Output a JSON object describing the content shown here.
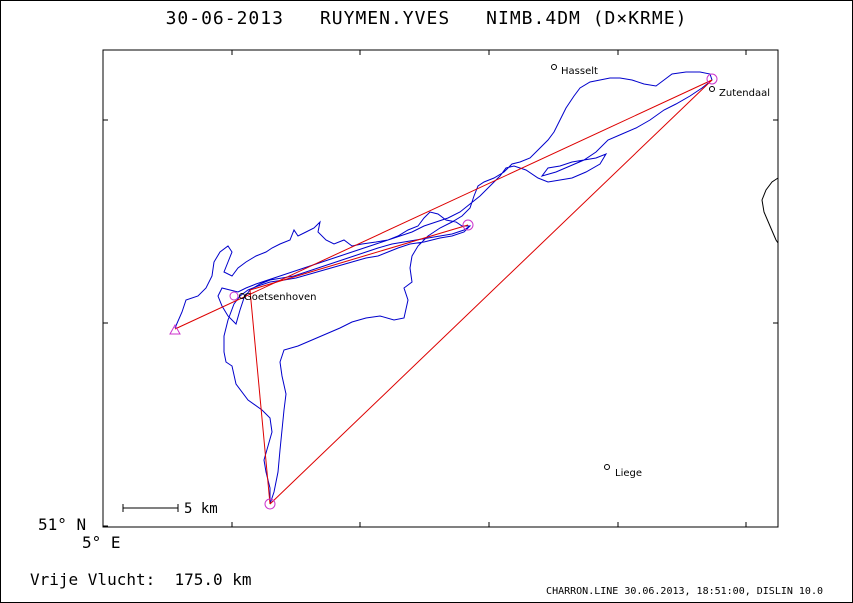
{
  "header": {
    "date": "30-06-2013",
    "pilot": "RUYMEN.YVES",
    "glider": "NIMB.4DM (D×KRME)"
  },
  "axes": {
    "lat_label": "51° N",
    "lon_label": "5° E"
  },
  "scale_bar": {
    "label": "5 km"
  },
  "places": [
    {
      "name": "Hasselt"
    },
    {
      "name": "Zutendaal"
    },
    {
      "name": "Goetsenhoven"
    },
    {
      "name": "Liege"
    }
  ],
  "footer": {
    "distance_label": "Vrije Vlucht:",
    "distance_value": "175.0 km",
    "credit": "CHARRON.LINE 30.06.2013, 18:51:00, DISLIN 10.0"
  },
  "colors": {
    "track": "#0000cc",
    "task_line": "#dd0000",
    "turnpoint": "#cc33cc",
    "frame": "#000000"
  }
}
